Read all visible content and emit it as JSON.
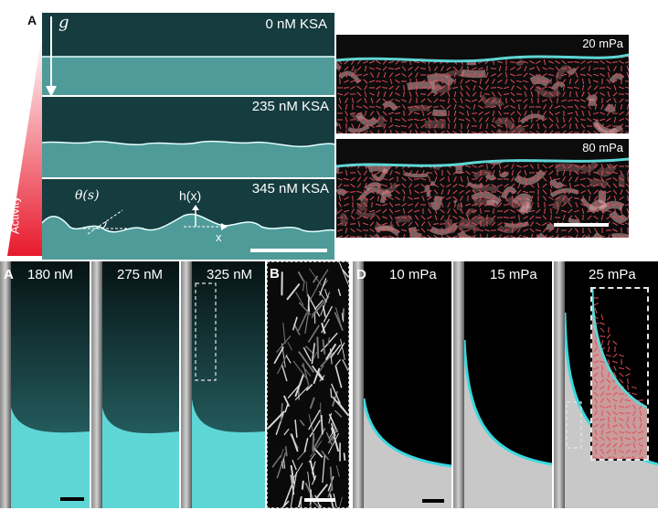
{
  "panel_top_left": {
    "letter": "A",
    "gravity_symbol": "g",
    "activity_label": "Activity",
    "rows": [
      {
        "label": "0 nM KSA"
      },
      {
        "label": "235 nM KSA"
      },
      {
        "label": "345 nM KSA"
      }
    ],
    "annot_theta": "θ(s)",
    "annot_h": "h(x)",
    "annot_x": "x"
  },
  "panel_top_right": {
    "letter": "A",
    "rows": [
      {
        "label": "20 mPa"
      },
      {
        "label": "80 mPa"
      }
    ]
  },
  "panel_bottom_left": {
    "letter": "A",
    "columns": [
      {
        "label": "180 nM"
      },
      {
        "label": "275 nM"
      },
      {
        "label": "325 nM"
      }
    ]
  },
  "panel_bottom_middle": {
    "letter": "B"
  },
  "panel_bottom_right": {
    "letter": "D",
    "columns": [
      {
        "label": "10 mPa"
      },
      {
        "label": "15 mPa"
      },
      {
        "label": "25 mPa"
      }
    ]
  },
  "colors": {
    "cyan": "#5fd6d6",
    "teal_bg": "#153c3f",
    "nematic_red": "#e34b5a",
    "activity_red": "#e8192c"
  }
}
